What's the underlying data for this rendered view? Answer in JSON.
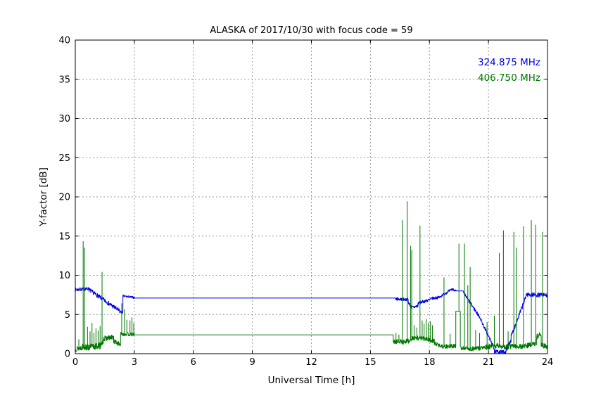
{
  "figure": {
    "background": "#ffffff",
    "frame_color": "#000000",
    "grid_color": "#999999"
  },
  "chart_data": {
    "type": "line",
    "title": "ALASKA of 2017/10/30 with focus code = 59",
    "xlabel": "Universal Time [h]",
    "ylabel": "Y-factor [dB]",
    "xlim": [
      0,
      24
    ],
    "ylim": [
      0,
      40
    ],
    "xticks": [
      0,
      3,
      6,
      9,
      12,
      15,
      18,
      21,
      24
    ],
    "yticks": [
      0,
      5,
      10,
      15,
      20,
      25,
      30,
      35,
      40
    ],
    "grid": true,
    "legend": {
      "position": "upper right",
      "entries": [
        {
          "label": "324.875 MHz",
          "color": "#0000ee"
        },
        {
          "label": "406.750 MHz",
          "color": "#007700"
        }
      ]
    },
    "series": [
      {
        "name": "324.875 MHz",
        "color": "#0000ee",
        "seed": 7,
        "segments": [
          {
            "t": "noisy",
            "h": [
              0.0,
              0.7
            ],
            "v": [
              8.15,
              8.3
            ],
            "amp": 0.22
          },
          {
            "t": "noisy",
            "h": [
              0.7,
              2.25
            ],
            "v": [
              8.15,
              5.45
            ],
            "amp": 0.28
          },
          {
            "t": "noisy",
            "h": [
              2.25,
              2.42
            ],
            "v": [
              5.35,
              5.3
            ],
            "amp": 0.18
          },
          {
            "t": "noisy",
            "h": [
              2.42,
              3.0
            ],
            "v": [
              7.35,
              7.15
            ],
            "amp": 0.14
          },
          {
            "t": "line",
            "h": [
              3.0,
              16.28
            ],
            "v": [
              7.1,
              7.1
            ]
          },
          {
            "t": "noisy",
            "h": [
              16.28,
              16.92
            ],
            "v": [
              7.0,
              6.9
            ],
            "amp": 0.2
          },
          {
            "t": "noisy",
            "h": [
              16.92,
              17.08
            ],
            "v": [
              6.6,
              5.9
            ],
            "amp": 0.2
          },
          {
            "t": "noisy",
            "h": [
              17.08,
              17.42
            ],
            "v": [
              5.85,
              6.1
            ],
            "amp": 0.22
          },
          {
            "t": "noisy",
            "h": [
              17.42,
              18.05
            ],
            "v": [
              6.45,
              6.9
            ],
            "amp": 0.2
          },
          {
            "t": "noisy",
            "h": [
              18.05,
              18.6
            ],
            "v": [
              7.0,
              7.25
            ],
            "amp": 0.18
          },
          {
            "t": "noisy",
            "h": [
              18.6,
              19.18
            ],
            "v": [
              7.4,
              8.25
            ],
            "amp": 0.18
          },
          {
            "t": "noisy",
            "h": [
              19.18,
              19.35
            ],
            "v": [
              8.2,
              8.05
            ],
            "amp": 0.14
          },
          {
            "t": "line",
            "h": [
              19.35,
              19.72
            ],
            "v": [
              8.0,
              8.0
            ]
          },
          {
            "t": "noisy",
            "h": [
              19.72,
              20.6
            ],
            "v": [
              7.8,
              4.5
            ],
            "amp": 0.22
          },
          {
            "t": "noisy",
            "h": [
              20.6,
              21.3
            ],
            "v": [
              4.4,
              0.6
            ],
            "amp": 0.22
          },
          {
            "t": "noisy",
            "h": [
              21.3,
              21.9
            ],
            "v": [
              0.25,
              0.2
            ],
            "amp": 0.25
          },
          {
            "t": "noisy",
            "h": [
              21.9,
              22.15
            ],
            "v": [
              0.5,
              1.8
            ],
            "amp": 0.3
          },
          {
            "t": "noisy",
            "h": [
              22.15,
              22.9
            ],
            "v": [
              2.2,
              7.2
            ],
            "amp": 0.3
          },
          {
            "t": "noisy",
            "h": [
              22.9,
              24.0
            ],
            "v": [
              7.55,
              7.45
            ],
            "amp": 0.28
          }
        ]
      },
      {
        "name": "406.750 MHz",
        "color": "#007700",
        "seed": 13,
        "segments": [
          {
            "t": "noisy",
            "h": [
              0.0,
              0.36
            ],
            "v": [
              0.6,
              0.8
            ],
            "amp": 0.35,
            "spikes": [
              [
                0.18,
                1.8
              ]
            ]
          },
          {
            "t": "noisy",
            "h": [
              0.36,
              0.52
            ],
            "v": [
              0.9,
              0.9
            ],
            "amp": 0.4,
            "spikes": [
              [
                0.4,
                14.3
              ],
              [
                0.47,
                13.5
              ]
            ]
          },
          {
            "t": "noisy",
            "h": [
              0.52,
              1.32
            ],
            "v": [
              0.8,
              1.0
            ],
            "amp": 0.45,
            "spikes": [
              [
                0.62,
                3.4
              ],
              [
                0.75,
                2.8
              ],
              [
                0.85,
                3.9
              ],
              [
                0.95,
                2.6
              ],
              [
                1.05,
                3.2
              ],
              [
                1.16,
                2.9
              ],
              [
                1.26,
                3.5
              ]
            ]
          },
          {
            "t": "noisy",
            "h": [
              1.32,
              1.42
            ],
            "v": [
              1.2,
              1.6
            ],
            "amp": 0.3,
            "spikes": [
              [
                1.36,
                10.4
              ]
            ]
          },
          {
            "t": "noisy",
            "h": [
              1.42,
              1.95
            ],
            "v": [
              1.9,
              2.1
            ],
            "amp": 0.35
          },
          {
            "t": "noisy",
            "h": [
              1.95,
              2.3
            ],
            "v": [
              1.6,
              1.15
            ],
            "amp": 0.3
          },
          {
            "t": "noisy",
            "h": [
              2.3,
              3.0
            ],
            "v": [
              2.5,
              2.45
            ],
            "amp": 0.22,
            "spikes": [
              [
                2.36,
                6.4
              ],
              [
                2.5,
                5.6
              ],
              [
                2.62,
                4.3
              ],
              [
                2.78,
                4.2
              ],
              [
                2.88,
                4.6
              ],
              [
                2.97,
                3.9
              ]
            ]
          },
          {
            "t": "line",
            "h": [
              3.0,
              16.16
            ],
            "v": [
              2.4,
              2.4
            ]
          },
          {
            "t": "noisy",
            "h": [
              16.16,
              16.58
            ],
            "v": [
              1.5,
              1.6
            ],
            "amp": 0.3,
            "spikes": [
              [
                16.3,
                2.6
              ],
              [
                16.45,
                2.4
              ]
            ]
          },
          {
            "t": "noisy",
            "h": [
              16.58,
              16.82
            ],
            "v": [
              1.5,
              1.5
            ],
            "amp": 0.3,
            "spikes": [
              [
                16.62,
                17.0
              ]
            ]
          },
          {
            "t": "noisy",
            "h": [
              16.82,
              17.0
            ],
            "v": [
              1.6,
              1.6
            ],
            "amp": 0.3,
            "spikes": [
              [
                16.87,
                19.4
              ]
            ]
          },
          {
            "t": "noisy",
            "h": [
              17.0,
              17.14
            ],
            "v": [
              1.8,
              1.9
            ],
            "amp": 0.3,
            "spikes": [
              [
                17.04,
                13.7
              ],
              [
                17.1,
                13.2
              ]
            ]
          },
          {
            "t": "noisy",
            "h": [
              17.14,
              17.48
            ],
            "v": [
              2.0,
              2.0
            ],
            "amp": 0.3,
            "spikes": [
              [
                17.22,
                3.6
              ],
              [
                17.36,
                3.3
              ]
            ]
          },
          {
            "t": "noisy",
            "h": [
              17.48,
              17.56
            ],
            "v": [
              2.0,
              2.0
            ],
            "amp": 0.25,
            "spikes": [
              [
                17.52,
                16.3
              ]
            ]
          },
          {
            "t": "noisy",
            "h": [
              17.56,
              18.25
            ],
            "v": [
              2.0,
              1.6
            ],
            "amp": 0.3,
            "spikes": [
              [
                17.63,
                4.2
              ],
              [
                17.73,
                3.8
              ],
              [
                17.84,
                4.4
              ],
              [
                17.94,
                3.9
              ],
              [
                18.05,
                4.1
              ],
              [
                18.15,
                3.6
              ]
            ]
          },
          {
            "t": "noisy",
            "h": [
              18.25,
              18.7
            ],
            "v": [
              1.3,
              0.9
            ],
            "amp": 0.25
          },
          {
            "t": "noisy",
            "h": [
              18.7,
              18.8
            ],
            "v": [
              0.9,
              0.9
            ],
            "amp": 0.25,
            "spikes": [
              [
                18.74,
                9.7
              ]
            ]
          },
          {
            "t": "noisy",
            "h": [
              18.8,
              19.34
            ],
            "v": [
              0.9,
              1.0
            ],
            "amp": 0.28,
            "spikes": [
              [
                19.05,
                2.5
              ]
            ]
          },
          {
            "t": "line",
            "h": [
              19.34,
              19.57
            ],
            "v": [
              5.4,
              5.4
            ],
            "spikes": [
              [
                19.5,
                14.0
              ]
            ]
          },
          {
            "t": "noisy",
            "h": [
              19.57,
              19.74
            ],
            "v": [
              0.7,
              0.7
            ],
            "amp": 0.25
          },
          {
            "t": "noisy",
            "h": [
              19.74,
              19.85
            ],
            "v": [
              0.7,
              0.7
            ],
            "amp": 0.25,
            "spikes": [
              [
                19.78,
                14.0
              ]
            ]
          },
          {
            "t": "noisy",
            "h": [
              19.85,
              20.02
            ],
            "v": [
              0.7,
              0.7
            ],
            "amp": 0.25,
            "spikes": [
              [
                19.95,
                8.7
              ]
            ]
          },
          {
            "t": "noisy",
            "h": [
              20.02,
              20.12
            ],
            "v": [
              0.6,
              0.6
            ],
            "amp": 0.25,
            "spikes": [
              [
                20.07,
                11.0
              ]
            ]
          },
          {
            "t": "noisy",
            "h": [
              20.12,
              20.85
            ],
            "v": [
              0.6,
              0.8
            ],
            "amp": 0.3,
            "spikes": [
              [
                20.35,
                3.0
              ],
              [
                20.55,
                2.6
              ]
            ]
          },
          {
            "t": "noisy",
            "h": [
              20.85,
              21.48
            ],
            "v": [
              0.8,
              1.0
            ],
            "amp": 0.35,
            "spikes": [
              [
                20.93,
                4.0
              ],
              [
                21.3,
                4.8
              ]
            ]
          },
          {
            "t": "noisy",
            "h": [
              21.48,
              21.62
            ],
            "v": [
              1.0,
              1.0
            ],
            "amp": 0.3,
            "spikes": [
              [
                21.55,
                12.8
              ]
            ]
          },
          {
            "t": "noisy",
            "h": [
              21.62,
              21.72
            ],
            "v": [
              1.0,
              0.9
            ],
            "amp": 0.3
          },
          {
            "t": "noisy",
            "h": [
              21.72,
              21.82
            ],
            "v": [
              0.9,
              0.9
            ],
            "amp": 0.3,
            "spikes": [
              [
                21.76,
                15.7
              ]
            ]
          },
          {
            "t": "noisy",
            "h": [
              21.82,
              22.24
            ],
            "v": [
              0.8,
              1.0
            ],
            "amp": 0.35,
            "spikes": [
              [
                22.0,
                2.8
              ]
            ]
          },
          {
            "t": "noisy",
            "h": [
              22.24,
              22.35
            ],
            "v": [
              1.0,
              1.0
            ],
            "amp": 0.3,
            "spikes": [
              [
                22.29,
                15.5
              ]
            ]
          },
          {
            "t": "noisy",
            "h": [
              22.35,
              22.46
            ],
            "v": [
              1.0,
              0.9
            ],
            "amp": 0.3,
            "spikes": [
              [
                22.42,
                13.5
              ]
            ]
          },
          {
            "t": "noisy",
            "h": [
              22.46,
              22.74
            ],
            "v": [
              0.9,
              0.9
            ],
            "amp": 0.3
          },
          {
            "t": "noisy",
            "h": [
              22.74,
              22.84
            ],
            "v": [
              0.9,
              1.0
            ],
            "amp": 0.3,
            "spikes": [
              [
                22.78,
                16.2
              ]
            ]
          },
          {
            "t": "noisy",
            "h": [
              22.84,
              23.12
            ],
            "v": [
              1.0,
              1.1
            ],
            "amp": 0.35
          },
          {
            "t": "noisy",
            "h": [
              23.12,
              23.24
            ],
            "v": [
              1.1,
              1.2
            ],
            "amp": 0.3,
            "spikes": [
              [
                23.18,
                17.0
              ]
            ]
          },
          {
            "t": "noisy",
            "h": [
              23.24,
              23.44
            ],
            "v": [
              1.2,
              1.3
            ],
            "amp": 0.3,
            "spikes": [
              [
                23.4,
                16.4
              ]
            ]
          },
          {
            "t": "noisy",
            "h": [
              23.44,
              23.68
            ],
            "v": [
              2.2,
              2.4
            ],
            "amp": 0.45
          },
          {
            "t": "noisy",
            "h": [
              23.68,
              23.8
            ],
            "v": [
              1.2,
              1.0
            ],
            "amp": 0.3,
            "spikes": [
              [
                23.75,
                15.5
              ]
            ]
          },
          {
            "t": "noisy",
            "h": [
              23.8,
              24.0
            ],
            "v": [
              1.0,
              0.8
            ],
            "amp": 0.35
          }
        ]
      }
    ]
  }
}
